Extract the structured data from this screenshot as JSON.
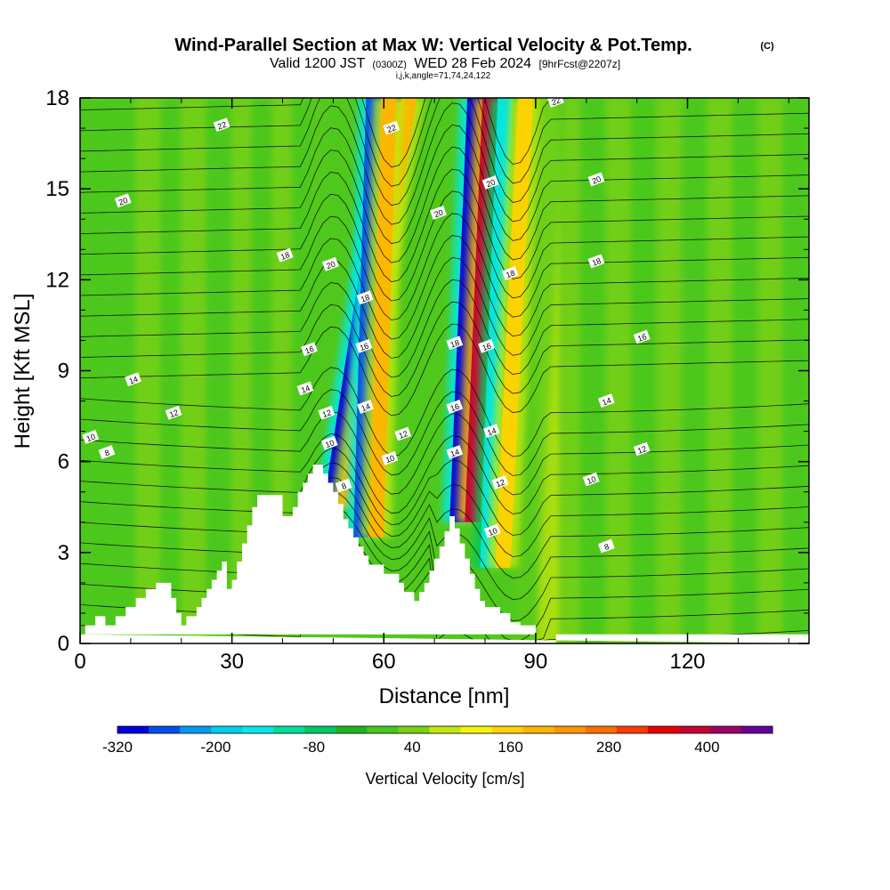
{
  "header": {
    "title": "Wind-Parallel Section at Max W: Vertical Velocity & Pot.Temp.",
    "copyright": "(C)",
    "subtitle_main": "Valid 1200 JST",
    "subtitle_zulu": "(0300Z)",
    "subtitle_date": "WED 28 Feb 2024",
    "subtitle_fcst": "[9hrFcst@2207z]",
    "ijk_line": "i,j,k,angle=71,74,24,122"
  },
  "chart_data": {
    "type": "heatmap",
    "title": "Wind-Parallel Section at Max W: Vertical Velocity & Pot.Temp.",
    "xlabel": "Distance [nm]",
    "ylabel": "Height [Kft MSL]",
    "xlim": [
      0,
      144
    ],
    "ylim": [
      0,
      18
    ],
    "x_ticks": [
      0,
      30,
      60,
      90,
      120
    ],
    "y_ticks": [
      0,
      3,
      6,
      9,
      12,
      15,
      18
    ],
    "x_tick_labels": [
      "0",
      "30",
      "60",
      "90",
      "120"
    ],
    "y_tick_labels": [
      "0",
      "3",
      "6",
      "9",
      "12",
      "15",
      "18"
    ],
    "colorbar": {
      "label": "Vertical Velocity [cm/s]",
      "min": -320,
      "max": 480,
      "step": 40,
      "tick_values": [
        -320,
        -200,
        -80,
        40,
        160,
        280,
        400
      ],
      "tick_labels": [
        "-320",
        "-200",
        "-80",
        "40",
        "160",
        "280",
        "400"
      ],
      "colors": [
        "#0000dd",
        "#0050ee",
        "#0099ee",
        "#00ccf0",
        "#00e8e8",
        "#00dd99",
        "#00c864",
        "#1fb41f",
        "#46c81e",
        "#7ad212",
        "#c3e60f",
        "#f5f500",
        "#ffd200",
        "#ffb400",
        "#ff9600",
        "#ff6e00",
        "#ff3c00",
        "#e60000",
        "#c80032",
        "#9b0064",
        "#640096"
      ]
    },
    "terrain": [
      [
        0,
        0.3
      ],
      [
        1,
        0.3
      ],
      [
        1,
        0.6
      ],
      [
        3,
        0.6
      ],
      [
        3,
        0.9
      ],
      [
        5,
        0.9
      ],
      [
        5,
        0.6
      ],
      [
        7,
        0.6
      ],
      [
        7,
        0.9
      ],
      [
        9,
        0.9
      ],
      [
        9,
        1.2
      ],
      [
        11,
        1.2
      ],
      [
        11,
        1.5
      ],
      [
        13,
        1.5
      ],
      [
        13,
        1.8
      ],
      [
        15,
        1.8
      ],
      [
        15,
        2.0
      ],
      [
        18,
        2.0
      ],
      [
        18,
        1.5
      ],
      [
        19,
        1.5
      ],
      [
        19,
        1.0
      ],
      [
        20,
        1.0
      ],
      [
        20,
        0.6
      ],
      [
        21,
        0.6
      ],
      [
        21,
        0.9
      ],
      [
        23,
        0.9
      ],
      [
        23,
        1.2
      ],
      [
        24,
        1.2
      ],
      [
        24,
        1.5
      ],
      [
        25,
        1.5
      ],
      [
        25,
        1.8
      ],
      [
        26,
        1.8
      ],
      [
        26,
        2.1
      ],
      [
        27,
        2.1
      ],
      [
        27,
        2.4
      ],
      [
        28,
        2.4
      ],
      [
        28,
        2.7
      ],
      [
        29,
        2.7
      ],
      [
        29,
        1.8
      ],
      [
        30,
        1.8
      ],
      [
        30,
        2.1
      ],
      [
        31,
        2.1
      ],
      [
        31,
        2.7
      ],
      [
        32,
        2.7
      ],
      [
        32,
        3.3
      ],
      [
        33,
        3.3
      ],
      [
        33,
        3.9
      ],
      [
        34,
        3.9
      ],
      [
        34,
        4.5
      ],
      [
        35,
        4.5
      ],
      [
        35,
        4.9
      ],
      [
        40,
        4.9
      ],
      [
        40,
        4.2
      ],
      [
        42,
        4.2
      ],
      [
        42,
        4.5
      ],
      [
        43,
        4.5
      ],
      [
        43,
        5.0
      ],
      [
        44,
        5.0
      ],
      [
        44,
        5.3
      ],
      [
        45,
        5.3
      ],
      [
        45,
        5.6
      ],
      [
        46,
        5.6
      ],
      [
        46,
        5.9
      ],
      [
        48,
        5.9
      ],
      [
        48,
        5.6
      ],
      [
        49,
        5.6
      ],
      [
        49,
        5.3
      ],
      [
        50,
        5.3
      ],
      [
        50,
        5.0
      ],
      [
        51,
        5.0
      ],
      [
        51,
        4.6
      ],
      [
        52,
        4.6
      ],
      [
        52,
        4.1
      ],
      [
        53,
        4.1
      ],
      [
        53,
        3.8
      ],
      [
        54,
        3.8
      ],
      [
        54,
        3.5
      ],
      [
        55,
        3.5
      ],
      [
        55,
        3.2
      ],
      [
        56,
        3.2
      ],
      [
        56,
        2.9
      ],
      [
        57,
        2.9
      ],
      [
        57,
        2.6
      ],
      [
        60,
        2.6
      ],
      [
        60,
        2.3
      ],
      [
        63,
        2.3
      ],
      [
        63,
        2.0
      ],
      [
        64,
        2.0
      ],
      [
        64,
        1.7
      ],
      [
        66,
        1.7
      ],
      [
        66,
        1.4
      ],
      [
        67,
        1.4
      ],
      [
        67,
        1.7
      ],
      [
        68,
        1.7
      ],
      [
        68,
        2.0
      ],
      [
        69,
        2.0
      ],
      [
        69,
        2.4
      ],
      [
        70,
        2.4
      ],
      [
        70,
        2.8
      ],
      [
        71,
        2.8
      ],
      [
        71,
        3.2
      ],
      [
        72,
        3.2
      ],
      [
        72,
        3.7
      ],
      [
        73,
        3.7
      ],
      [
        73,
        4.2
      ],
      [
        74,
        4.2
      ],
      [
        74,
        3.8
      ],
      [
        75,
        3.8
      ],
      [
        75,
        3.3
      ],
      [
        76,
        3.3
      ],
      [
        76,
        2.8
      ],
      [
        77,
        2.8
      ],
      [
        77,
        2.3
      ],
      [
        78,
        2.3
      ],
      [
        78,
        1.8
      ],
      [
        79,
        1.8
      ],
      [
        79,
        1.4
      ],
      [
        80,
        1.4
      ],
      [
        80,
        1.2
      ],
      [
        83,
        1.2
      ],
      [
        83,
        1.0
      ],
      [
        85,
        1.0
      ],
      [
        85,
        0.7
      ],
      [
        87,
        0.7
      ],
      [
        87,
        0.6
      ],
      [
        90,
        0.6
      ],
      [
        90,
        0.3
      ],
      [
        94,
        0.3
      ],
      [
        94,
        0
      ],
      [
        144,
        0
      ],
      [
        144,
        0.3
      ],
      [
        0,
        0.3
      ]
    ],
    "vertical_velocity_features": [
      {
        "x": 49.5,
        "x_top": 62,
        "z_bottom": 4.5,
        "z_top": 18,
        "value": -300
      },
      {
        "x": 52.5,
        "x_top": 65,
        "z_bottom": 4.5,
        "z_top": 18,
        "value": 220
      },
      {
        "x": 55.5,
        "x_top": 58,
        "z_bottom": 3.5,
        "z_top": 18,
        "value": -280
      },
      {
        "x": 58.5,
        "x_top": 61,
        "z_bottom": 3.5,
        "z_top": 18,
        "value": 200
      },
      {
        "x": 74.5,
        "x_top": 78,
        "z_bottom": 4.0,
        "z_top": 18,
        "value": -320
      },
      {
        "x": 77.5,
        "x_top": 81,
        "z_bottom": 4.0,
        "z_top": 18,
        "value": 420
      },
      {
        "x": 80.5,
        "x_top": 84,
        "z_bottom": 2.5,
        "z_top": 18,
        "value": -160
      },
      {
        "x": 83.5,
        "x_top": 88,
        "z_bottom": 2.5,
        "z_top": 18,
        "value": 180
      }
    ],
    "theta_contour_labels": [
      {
        "text": "22",
        "x": 28,
        "z": 17.1
      },
      {
        "text": "20",
        "x": 8.5,
        "z": 14.6
      },
      {
        "text": "18",
        "x": 40.5,
        "z": 12.8
      },
      {
        "text": "14",
        "x": 10.5,
        "z": 8.7
      },
      {
        "text": "12",
        "x": 18.5,
        "z": 7.6
      },
      {
        "text": "10",
        "x": 2.1,
        "z": 6.8
      },
      {
        "text": "8",
        "x": 5.3,
        "z": 6.3
      },
      {
        "text": "20",
        "x": 49.5,
        "z": 12.5
      },
      {
        "text": "16",
        "x": 45.3,
        "z": 9.7
      },
      {
        "text": "14",
        "x": 44.5,
        "z": 8.4
      },
      {
        "text": "12",
        "x": 48.7,
        "z": 7.6
      },
      {
        "text": "10",
        "x": 49.3,
        "z": 6.6
      },
      {
        "text": "8",
        "x": 52.1,
        "z": 5.2
      },
      {
        "text": "18",
        "x": 56.3,
        "z": 11.4
      },
      {
        "text": "16",
        "x": 56.1,
        "z": 9.8
      },
      {
        "text": "14",
        "x": 56.4,
        "z": 7.8
      },
      {
        "text": "12",
        "x": 63.8,
        "z": 6.9
      },
      {
        "text": "10",
        "x": 61.2,
        "z": 6.1
      },
      {
        "text": "22",
        "x": 61.5,
        "z": 17.0
      },
      {
        "text": "20",
        "x": 70.8,
        "z": 14.2
      },
      {
        "text": "18",
        "x": 74.0,
        "z": 9.9
      },
      {
        "text": "16",
        "x": 74.0,
        "z": 7.8
      },
      {
        "text": "14",
        "x": 74.0,
        "z": 6.3
      },
      {
        "text": "20",
        "x": 81.1,
        "z": 15.2
      },
      {
        "text": "18",
        "x": 85.0,
        "z": 12.2
      },
      {
        "text": "16",
        "x": 80.3,
        "z": 9.8
      },
      {
        "text": "14",
        "x": 81.3,
        "z": 7.0
      },
      {
        "text": "12",
        "x": 83.0,
        "z": 5.3
      },
      {
        "text": "10",
        "x": 81.5,
        "z": 3.7
      },
      {
        "text": "22",
        "x": 94.0,
        "z": 17.9
      },
      {
        "text": "20",
        "x": 102.0,
        "z": 15.3
      },
      {
        "text": "18",
        "x": 102.0,
        "z": 12.6
      },
      {
        "text": "16",
        "x": 111.0,
        "z": 10.1
      },
      {
        "text": "14",
        "x": 104.0,
        "z": 8.0
      },
      {
        "text": "12",
        "x": 111.0,
        "z": 6.4
      },
      {
        "text": "10",
        "x": 101.0,
        "z": 5.4
      },
      {
        "text": "8",
        "x": 104.0,
        "z": 3.2
      }
    ]
  }
}
